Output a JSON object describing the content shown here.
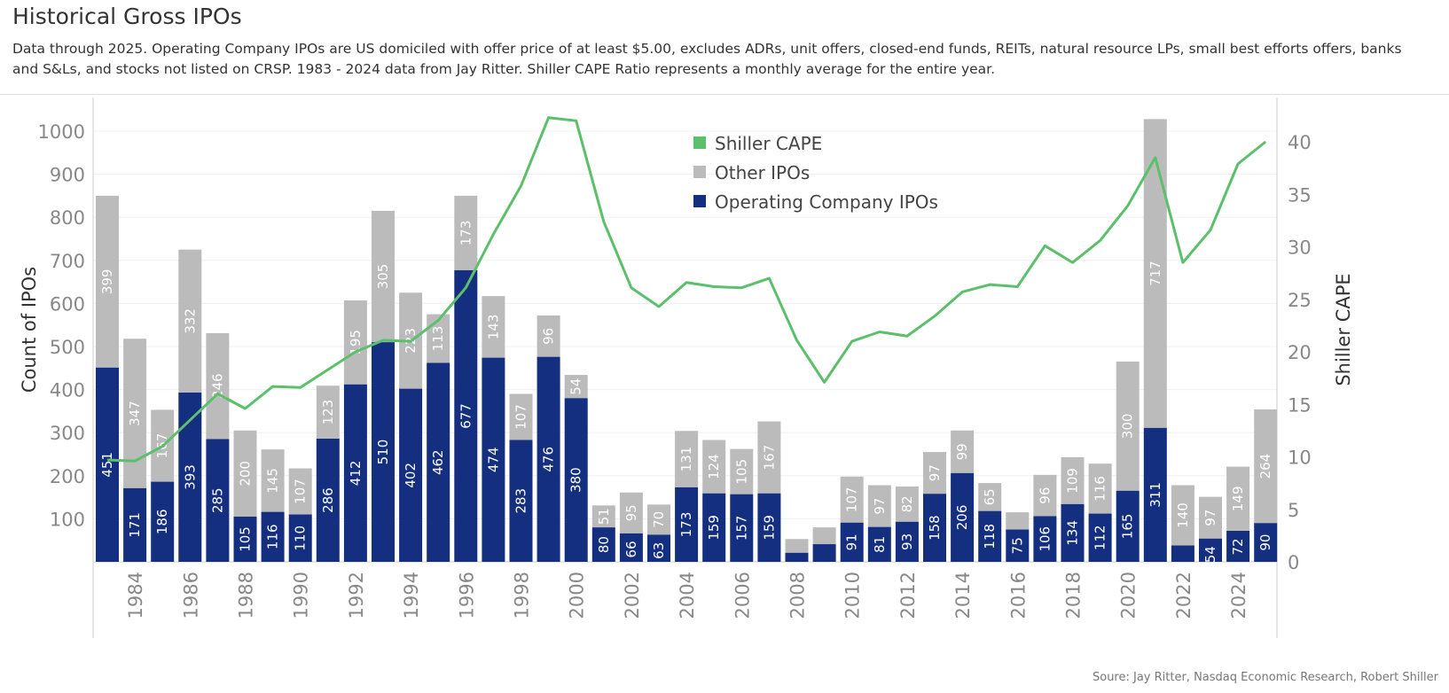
{
  "title": "Historical Gross IPOs",
  "subtitle": "Data through 2025. Operating Company IPOs are US domiciled with offer price of at least $5.00, excludes ADRs, unit offers, closed-end funds, REITs, natural resource LPs, small best efforts offers, banks and S&Ls, and stocks not listed on CRSP. 1983 - 2024 data from Jay Ritter. Shiller CAPE Ratio represents a monthly average for the entire year.",
  "source": "Soure: Jay Ritter, Nasdaq Economic Research, Robert Shiller",
  "chart_data": {
    "type": "bar+line",
    "stacked": true,
    "ylabel": "Count of IPOs",
    "y2label": "Shiller CAPE",
    "ylim": [
      0,
      1050
    ],
    "y2lim": [
      0,
      44
    ],
    "yticks": [
      100,
      200,
      300,
      400,
      500,
      600,
      700,
      800,
      900,
      1000
    ],
    "y2ticks": [
      0,
      5,
      10,
      15,
      20,
      25,
      30,
      35,
      40
    ],
    "grid": true,
    "legend_position": "top-center",
    "x": [
      1983,
      1984,
      1985,
      1986,
      1987,
      1988,
      1989,
      1990,
      1991,
      1992,
      1993,
      1994,
      1995,
      1996,
      1997,
      1998,
      1999,
      2000,
      2001,
      2002,
      2003,
      2004,
      2005,
      2006,
      2007,
      2008,
      2009,
      2010,
      2011,
      2012,
      2013,
      2014,
      2015,
      2016,
      2017,
      2018,
      2019,
      2020,
      2021,
      2022,
      2023,
      2024,
      2025
    ],
    "xticks": [
      1984,
      1986,
      1988,
      1990,
      1992,
      1994,
      1996,
      1998,
      2000,
      2002,
      2004,
      2006,
      2008,
      2010,
      2012,
      2014,
      2016,
      2018,
      2020,
      2022,
      2024
    ],
    "series": [
      {
        "name": "Operating Company IPOs",
        "color": "#142e80",
        "labeled": [
          true,
          true,
          true,
          true,
          true,
          true,
          true,
          true,
          true,
          true,
          true,
          true,
          true,
          true,
          true,
          true,
          true,
          true,
          true,
          true,
          true,
          true,
          true,
          true,
          true,
          false,
          false,
          true,
          true,
          true,
          true,
          true,
          true,
          true,
          true,
          true,
          true,
          true,
          true,
          false,
          true,
          true,
          true
        ],
        "values": [
          451,
          171,
          186,
          393,
          285,
          105,
          116,
          110,
          286,
          412,
          510,
          402,
          462,
          677,
          474,
          283,
          476,
          380,
          80,
          66,
          63,
          173,
          159,
          157,
          159,
          21,
          41,
          91,
          81,
          93,
          158,
          206,
          118,
          75,
          106,
          134,
          112,
          165,
          311,
          38,
          54,
          72,
          90
        ]
      },
      {
        "name": "Other IPOs",
        "color": "#bbbbbb",
        "labeled": [
          true,
          true,
          true,
          true,
          true,
          true,
          true,
          true,
          true,
          true,
          true,
          true,
          true,
          true,
          true,
          true,
          true,
          true,
          true,
          true,
          true,
          true,
          true,
          true,
          true,
          false,
          false,
          true,
          true,
          true,
          true,
          true,
          true,
          false,
          true,
          true,
          true,
          true,
          true,
          true,
          true,
          true,
          true
        ],
        "values": [
          399,
          347,
          167,
          332,
          246,
          200,
          145,
          107,
          123,
          195,
          305,
          223,
          113,
          173,
          143,
          107,
          96,
          54,
          51,
          95,
          70,
          131,
          124,
          105,
          167,
          32,
          39,
          107,
          97,
          82,
          97,
          99,
          65,
          40,
          96,
          109,
          116,
          300,
          717,
          140,
          97,
          149,
          264
        ]
      },
      {
        "name": "Shiller CAPE",
        "color": "#5cbf6b",
        "axis": "right",
        "values": [
          9.7,
          9.6,
          11,
          13.5,
          16,
          14.6,
          16.7,
          16.6,
          18.3,
          20,
          21.1,
          21,
          23,
          26.1,
          31.2,
          35.8,
          42.3,
          42,
          32.4,
          26.1,
          24.3,
          26.6,
          26.2,
          26.1,
          27,
          21.1,
          17.1,
          21,
          21.9,
          21.5,
          23.4,
          25.7,
          26.4,
          26.2,
          30.1,
          28.5,
          30.6,
          33.9,
          38.5,
          28.5,
          31.6,
          37.9,
          40
        ]
      }
    ]
  }
}
